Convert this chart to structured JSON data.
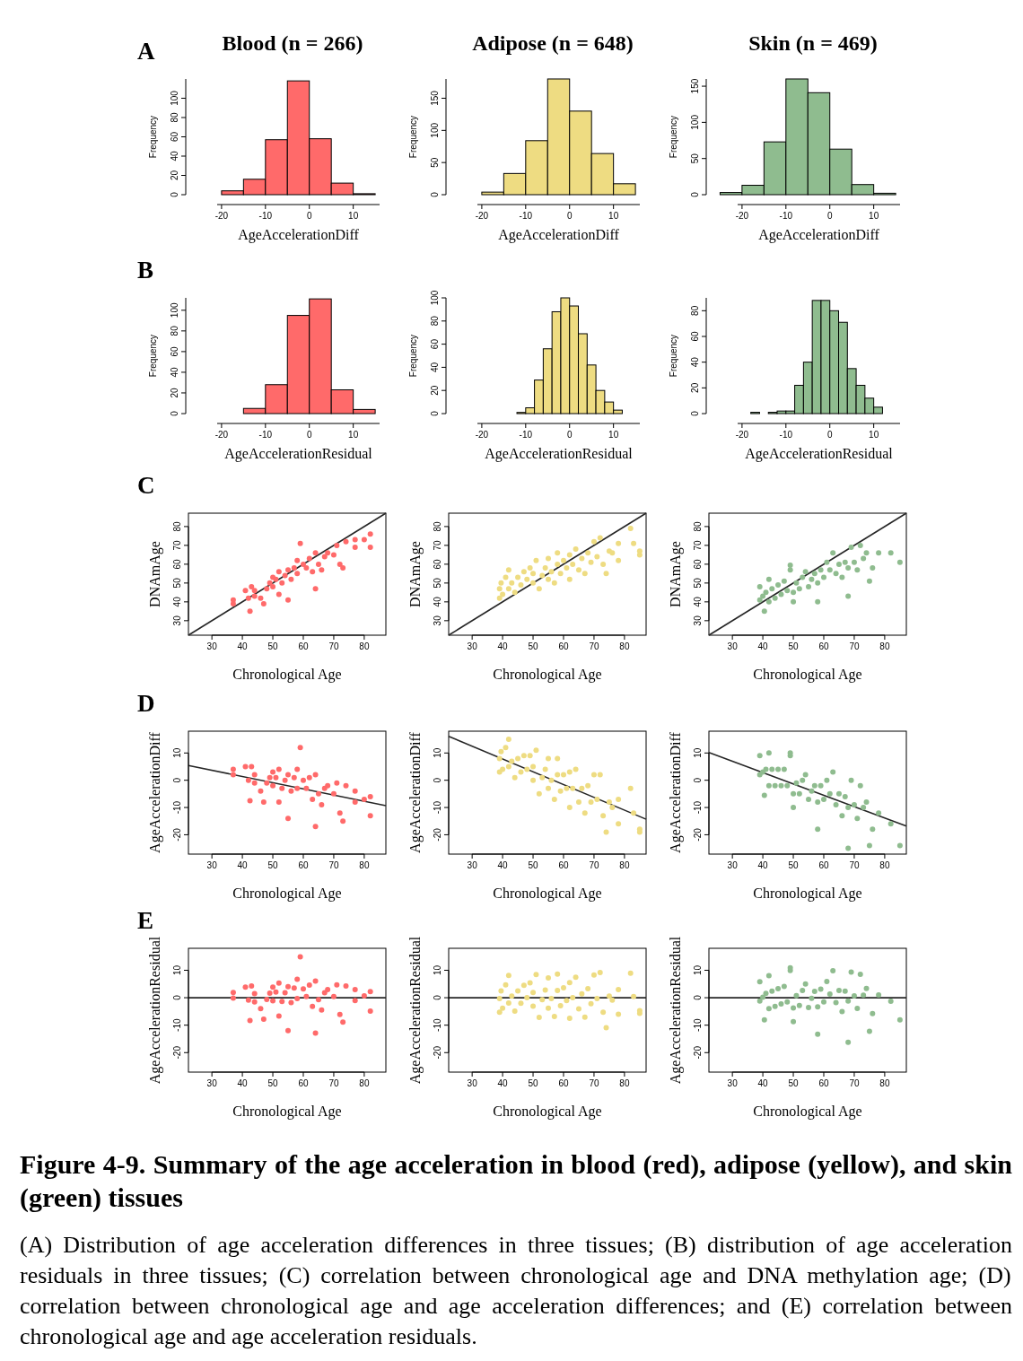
{
  "chart_data": [
    {
      "type": "histogram",
      "title": "Blood (n = 266)",
      "annotations": [
        "A"
      ],
      "xlabel": "AgeAccelerationDiff",
      "ylabel": "Frequency",
      "color": "#ff6a6a",
      "bins": [
        -20,
        -15,
        -10,
        -5,
        0,
        5,
        10,
        15
      ],
      "values": [
        4,
        16,
        57,
        118,
        58,
        12,
        1
      ],
      "xlim": [
        -21,
        16
      ],
      "xticks": [
        -20,
        -10,
        0,
        10
      ],
      "ylim": [
        0,
        120
      ],
      "yticks": [
        0,
        20,
        40,
        60,
        80,
        100
      ]
    },
    {
      "type": "histogram",
      "title": "Adipose (n = 648)",
      "xlabel": "AgeAccelerationDiff",
      "ylabel": "Frequency",
      "color": "#eedc82",
      "bins": [
        -20,
        -15,
        -10,
        -5,
        0,
        5,
        10,
        15
      ],
      "values": [
        4,
        33,
        84,
        180,
        130,
        64,
        17
      ],
      "xlim": [
        -21,
        16
      ],
      "xticks": [
        -20,
        -10,
        0,
        10
      ],
      "ylim": [
        0,
        180
      ],
      "yticks": [
        0,
        50,
        100,
        150
      ]
    },
    {
      "type": "histogram",
      "title": "Skin (n = 469)",
      "xlabel": "AgeAccelerationDiff",
      "ylabel": "Frequency",
      "color": "#8fbc8f",
      "bins": [
        -25,
        -20,
        -15,
        -10,
        -5,
        0,
        5,
        10,
        15
      ],
      "values": [
        3,
        13,
        73,
        160,
        141,
        63,
        14,
        2
      ],
      "xlim": [
        -21,
        16
      ],
      "xticks": [
        -20,
        -10,
        0,
        10
      ],
      "ylim": [
        0,
        160
      ],
      "yticks": [
        0,
        50,
        100,
        150
      ]
    },
    {
      "type": "histogram",
      "annotations": [
        "B"
      ],
      "xlabel": "AgeAccelerationResidual",
      "ylabel": "Frequency",
      "color": "#ff6a6a",
      "bins": [
        -15,
        -10,
        -5,
        0,
        5,
        10,
        15
      ],
      "values": [
        5,
        28,
        95,
        111,
        23,
        4
      ],
      "xlim": [
        -21,
        16
      ],
      "xticks": [
        -20,
        -10,
        0,
        10
      ],
      "ylim": [
        0,
        112
      ],
      "yticks": [
        0,
        20,
        40,
        60,
        80,
        100
      ]
    },
    {
      "type": "histogram",
      "xlabel": "AgeAccelerationResidual",
      "ylabel": "Frequency",
      "color": "#eedc82",
      "bins": [
        -12,
        -10,
        -8,
        -6,
        -4,
        -2,
        0,
        2,
        4,
        6,
        8,
        10,
        12
      ],
      "values": [
        1,
        5,
        29,
        56,
        88,
        100,
        93,
        69,
        42,
        20,
        10,
        3
      ],
      "xlim": [
        -21,
        16
      ],
      "xticks": [
        -20,
        -10,
        0,
        10
      ],
      "ylim": [
        0,
        100
      ],
      "yticks": [
        0,
        20,
        40,
        60,
        80,
        100
      ]
    },
    {
      "type": "histogram",
      "xlabel": "AgeAccelerationResidual",
      "ylabel": "Frequency",
      "color": "#8fbc8f",
      "bins": [
        -18,
        -16,
        -14,
        -12,
        -10,
        -8,
        -6,
        -4,
        -2,
        0,
        2,
        4,
        6,
        8,
        10,
        12
      ],
      "values": [
        1,
        0,
        1,
        2,
        2,
        22,
        40,
        88,
        88,
        80,
        71,
        35,
        22,
        12,
        5
      ],
      "xlim": [
        -21,
        16
      ],
      "xticks": [
        -20,
        -10,
        0,
        10
      ],
      "ylim": [
        0,
        90
      ],
      "yticks": [
        0,
        20,
        40,
        60,
        80
      ]
    },
    {
      "type": "scatter",
      "annotations": [
        "C"
      ],
      "xlabel": "Chronological Age",
      "ylabel": "DNAmAge",
      "marker": "circle",
      "xlim": [
        22.3,
        87.1
      ],
      "xticks": [
        30,
        40,
        50,
        60,
        70,
        80
      ],
      "ylim": [
        22.3,
        87.1
      ],
      "yticks": [
        30,
        40,
        50,
        60,
        70,
        80
      ],
      "series": [
        {
          "color": "#ff6a6a",
          "x": [
            37,
            37,
            41,
            42,
            42.5,
            43,
            44,
            44,
            46,
            47,
            48,
            49,
            50,
            50,
            51,
            52,
            52,
            53,
            54,
            55,
            55,
            56,
            57,
            58,
            58,
            59,
            60,
            61,
            62,
            63,
            64,
            64,
            65,
            66,
            67,
            68,
            70,
            71,
            72,
            73,
            74,
            77,
            77,
            80,
            82,
            82
          ],
          "values": [
            41,
            39,
            46,
            42,
            35,
            48,
            46,
            43,
            42,
            39,
            47,
            50,
            53,
            48,
            52,
            44,
            56,
            50,
            54,
            41,
            57,
            52,
            58,
            55,
            62,
            71,
            60,
            58,
            63,
            56,
            66,
            47,
            60,
            57,
            64,
            66,
            65,
            70,
            60,
            58,
            72,
            69,
            73,
            73,
            76,
            69
          ]
        },
        {
          "type": "line",
          "marker": "none",
          "color": "#262626",
          "x": [
            22.3,
            87.1
          ],
          "values": [
            22.3,
            87.1
          ]
        }
      ]
    },
    {
      "type": "scatter",
      "xlabel": "Chronological Age",
      "ylabel": "DNAmAge",
      "marker": "circle",
      "xlim": [
        22.3,
        87.1
      ],
      "xticks": [
        30,
        40,
        50,
        60,
        70,
        80
      ],
      "ylim": [
        22.3,
        87.1
      ],
      "yticks": [
        30,
        40,
        50,
        60,
        70,
        80
      ],
      "series": [
        {
          "color": "#eedc82",
          "x": [
            39,
            39,
            39.5,
            40,
            41,
            42,
            42,
            43,
            44,
            45,
            46,
            47,
            48,
            49,
            50,
            50,
            51,
            52,
            53,
            54,
            55,
            55,
            56,
            57,
            58,
            58,
            59,
            60,
            61,
            62,
            62,
            63,
            64,
            65,
            66,
            67,
            68,
            69,
            70,
            71,
            72,
            73,
            74,
            75,
            76,
            78,
            78,
            82,
            83,
            85,
            85
          ],
          "values": [
            42,
            47,
            50,
            44,
            53,
            47,
            57,
            50,
            45,
            53,
            49,
            56,
            52,
            58,
            50,
            55,
            62,
            47,
            54,
            58,
            52,
            63,
            56,
            50,
            60,
            66,
            55,
            62,
            58,
            65,
            52,
            60,
            68,
            57,
            63,
            55,
            66,
            61,
            72,
            64,
            74,
            60,
            55,
            67,
            66,
            71,
            62,
            79,
            71,
            67,
            65
          ]
        },
        {
          "type": "line",
          "marker": "none",
          "color": "#262626",
          "x": [
            22.3,
            87.1
          ],
          "values": [
            22.3,
            87.1
          ]
        }
      ]
    },
    {
      "type": "scatter",
      "xlabel": "Chronological Age",
      "ylabel": "DNAmAge",
      "marker": "circle",
      "xlim": [
        22.3,
        87.1
      ],
      "xticks": [
        30,
        40,
        50,
        60,
        70,
        80
      ],
      "ylim": [
        22.3,
        87.1
      ],
      "yticks": [
        30,
        40,
        50,
        60,
        70,
        80
      ],
      "series": [
        {
          "color": "#8fbc8f",
          "x": [
            39,
            39,
            40,
            40.5,
            41,
            42,
            42,
            43,
            44,
            45,
            46,
            47,
            48,
            49,
            49,
            50,
            50,
            51,
            52,
            53,
            54,
            55,
            56,
            57,
            58,
            58,
            59,
            60,
            61,
            62,
            63,
            64,
            65,
            66,
            67,
            68,
            68,
            69,
            70,
            71,
            72,
            73,
            74,
            75,
            76,
            78,
            82,
            85
          ],
          "values": [
            48,
            41,
            43,
            35,
            45,
            40,
            52,
            47,
            42,
            49,
            44,
            51,
            46,
            57,
            59.5,
            45,
            40,
            50,
            47,
            53,
            56,
            48,
            52,
            55,
            40,
            50,
            57,
            53,
            61,
            57,
            66,
            55,
            60,
            53,
            61,
            43,
            58,
            69,
            61,
            57,
            70,
            63,
            66,
            51,
            58,
            66,
            66,
            61
          ]
        },
        {
          "type": "line",
          "marker": "none",
          "color": "#262626",
          "x": [
            22.3,
            87.1
          ],
          "values": [
            22.3,
            87.1
          ]
        }
      ]
    },
    {
      "type": "scatter",
      "annotations": [
        "D"
      ],
      "xlabel": "Chronological Age",
      "ylabel": "AgeAccelerationDiff",
      "marker": "circle",
      "xlim": [
        22.3,
        87.1
      ],
      "xticks": [
        30,
        40,
        50,
        60,
        70,
        80
      ],
      "ylim": [
        -27.1,
        18
      ],
      "yticks": [
        -20,
        -10,
        0,
        10
      ],
      "series": [
        {
          "color": "#ff6a6a",
          "x": [
            37,
            37,
            41,
            42,
            42.5,
            43,
            44,
            44,
            46,
            47,
            48,
            49,
            50,
            50,
            51,
            52,
            52,
            53,
            54,
            55,
            55,
            56,
            57,
            58,
            58,
            59,
            60,
            61,
            62,
            63,
            64,
            64,
            65,
            66,
            67,
            68,
            70,
            71,
            72,
            73,
            74,
            77,
            77,
            80,
            82,
            82
          ],
          "values": [
            4,
            2,
            5,
            0,
            -7.5,
            5,
            2,
            -1,
            -4,
            -8,
            -1,
            1,
            3,
            -2,
            1,
            -8,
            4,
            -3,
            0,
            -14,
            2,
            -4,
            1,
            -3,
            4,
            12,
            0,
            -3,
            1,
            -7,
            2,
            -17,
            -5,
            -9,
            -3,
            -2,
            -5,
            -1,
            -12,
            -15,
            -2,
            -8,
            -4,
            -7,
            -6,
            -13
          ]
        },
        {
          "type": "line",
          "marker": "none",
          "color": "#262626",
          "x": [
            22.3,
            87.1
          ],
          "values": [
            5.4,
            -9.3
          ]
        }
      ]
    },
    {
      "type": "scatter",
      "xlabel": "Chronological Age",
      "ylabel": "AgeAccelerationDiff",
      "marker": "circle",
      "xlim": [
        22.3,
        87.1
      ],
      "xticks": [
        30,
        40,
        50,
        60,
        70,
        80
      ],
      "ylim": [
        -27.1,
        18
      ],
      "yticks": [
        -20,
        -10,
        0,
        10
      ],
      "series": [
        {
          "color": "#eedc82",
          "x": [
            39,
            39,
            39.5,
            40,
            41,
            42,
            42,
            43,
            44,
            45,
            46,
            47,
            48,
            49,
            50,
            50,
            51,
            52,
            53,
            54,
            55,
            55,
            56,
            57,
            58,
            58,
            59,
            60,
            61,
            62,
            62,
            63,
            64,
            65,
            66,
            67,
            68,
            69,
            70,
            71,
            72,
            73,
            74,
            75,
            76,
            78,
            78,
            82,
            83,
            85,
            85
          ],
          "values": [
            3,
            8,
            10.5,
            4,
            12,
            5,
            15,
            7,
            1,
            8,
            3,
            9,
            4,
            9,
            0,
            5,
            11,
            -5,
            1,
            4,
            -3,
            8,
            0,
            -7,
            2,
            8,
            -4,
            2,
            -3,
            3,
            -10,
            -3,
            4,
            -8,
            -3,
            -12,
            -2,
            -8,
            2,
            -7,
            2,
            -13,
            -19,
            -8,
            -10,
            -7,
            -16,
            -3,
            -12,
            -18,
            -19
          ]
        },
        {
          "type": "line",
          "marker": "none",
          "color": "#262626",
          "x": [
            22.3,
            87.1
          ],
          "values": [
            16.1,
            -14.3
          ]
        }
      ]
    },
    {
      "type": "scatter",
      "xlabel": "Chronological Age",
      "ylabel": "AgeAccelerationDiff",
      "marker": "circle",
      "xlim": [
        22.3,
        87.1
      ],
      "xticks": [
        30,
        40,
        50,
        60,
        70,
        80
      ],
      "ylim": [
        -27.1,
        18
      ],
      "yticks": [
        -20,
        -10,
        0,
        10
      ],
      "series": [
        {
          "color": "#8fbc8f",
          "x": [
            39,
            39,
            40,
            40.5,
            41,
            42,
            42,
            43,
            44,
            45,
            46,
            47,
            48,
            49,
            49,
            50,
            50,
            51,
            52,
            53,
            54,
            55,
            56,
            57,
            58,
            58,
            59,
            60,
            61,
            62,
            63,
            64,
            65,
            66,
            67,
            68,
            68,
            69,
            70,
            71,
            72,
            73,
            74,
            75,
            76,
            78,
            82,
            85
          ],
          "values": [
            9,
            2,
            3,
            -5.5,
            4,
            -2,
            10,
            4,
            -2,
            4,
            -2,
            4,
            -2,
            9,
            10,
            -5,
            -10,
            -1,
            -5,
            0,
            2,
            -7,
            -4,
            -2,
            -18,
            -8,
            -2,
            -7,
            0,
            -5,
            3,
            -9,
            -5,
            -13,
            -6,
            -25,
            -10,
            0,
            -9,
            -14,
            -2,
            -10,
            -8,
            -24,
            -18,
            -12,
            -16,
            -24
          ]
        },
        {
          "type": "line",
          "marker": "none",
          "color": "#262626",
          "x": [
            22.3,
            87.1
          ],
          "values": [
            10.2,
            -16.8
          ]
        }
      ]
    },
    {
      "type": "scatter",
      "annotations": [
        "E"
      ],
      "xlabel": "Chronological Age",
      "ylabel": "AgeAccelerationResidual",
      "marker": "circle",
      "xlim": [
        22.3,
        87.1
      ],
      "xticks": [
        30,
        40,
        50,
        60,
        70,
        80
      ],
      "ylim": [
        -27.1,
        18
      ],
      "yticks": [
        -20,
        -10,
        0,
        10
      ],
      "series": [
        {
          "color": "#ff6a6a",
          "x": [
            37,
            37,
            41,
            42,
            42.5,
            43,
            44,
            44,
            46,
            47,
            48,
            49,
            50,
            50,
            51,
            52,
            52,
            53,
            54,
            55,
            55,
            56,
            57,
            58,
            58,
            59,
            60,
            61,
            62,
            63,
            64,
            64,
            65,
            66,
            67,
            68,
            70,
            71,
            72,
            73,
            74,
            77,
            77,
            80,
            82,
            82
          ],
          "values": [
            1.9,
            -0.1,
            3.9,
            -0.9,
            -8.3,
            4.3,
            1.5,
            -1.5,
            -4,
            -7.8,
            -0.6,
            1.7,
            3.9,
            -1.1,
            2.1,
            -6.7,
            5.3,
            -1.4,
            1.8,
            -12,
            4,
            -1.8,
            3.5,
            -0.3,
            6.7,
            14.9,
            3.2,
            0.4,
            4.6,
            -3.2,
            6.1,
            -12.9,
            -0.7,
            -4.5,
            1.8,
            3,
            0.4,
            4.7,
            -6.1,
            -8.9,
            4.3,
            -1,
            3,
            0.7,
            2.2,
            -4.9
          ]
        },
        {
          "type": "line",
          "marker": "none",
          "color": "#262626",
          "x": [
            22.3,
            87.1
          ],
          "values": [
            0,
            0
          ]
        }
      ]
    },
    {
      "type": "scatter",
      "xlabel": "Chronological Age",
      "ylabel": "AgeAccelerationResidual",
      "marker": "circle",
      "xlim": [
        22.3,
        87.1
      ],
      "xticks": [
        30,
        40,
        50,
        60,
        70,
        80
      ],
      "ylim": [
        -27.1,
        18
      ],
      "yticks": [
        -20,
        -10,
        0,
        10
      ],
      "series": [
        {
          "color": "#eedc82",
          "x": [
            39,
            39,
            39.5,
            40,
            41,
            42,
            42,
            43,
            44,
            45,
            46,
            47,
            48,
            49,
            50,
            50,
            51,
            52,
            53,
            54,
            55,
            55,
            56,
            57,
            58,
            58,
            59,
            60,
            61,
            62,
            62,
            63,
            64,
            65,
            66,
            67,
            68,
            69,
            70,
            71,
            72,
            73,
            74,
            75,
            76,
            78,
            78,
            82,
            83,
            85,
            85
          ],
          "values": [
            -5.3,
            -0.3,
            2.5,
            -3.8,
            4.7,
            -1.9,
            8.1,
            0.6,
            -4.9,
            2.5,
            -2,
            4.5,
            0,
            5.4,
            -3.1,
            1.9,
            8.4,
            -7.2,
            -0.7,
            2.8,
            -3.8,
            7.2,
            -0.3,
            -6.8,
            2.6,
            8.6,
            -2.9,
            3.6,
            -1,
            5.5,
            -7.5,
            0,
            7.5,
            -4.1,
            1.4,
            -7.1,
            3.3,
            -2.2,
            8.3,
            -0.3,
            9.2,
            -5.3,
            -10.9,
            0.6,
            -0.9,
            3,
            -6,
            8.9,
            0.4,
            -4.7,
            -5.7
          ]
        },
        {
          "type": "line",
          "marker": "none",
          "color": "#262626",
          "x": [
            22.3,
            87.1
          ],
          "values": [
            0,
            0
          ]
        }
      ]
    },
    {
      "type": "scatter",
      "xlabel": "Chronological Age",
      "ylabel": "AgeAccelerationResidual",
      "marker": "circle",
      "xlim": [
        22.3,
        87.1
      ],
      "xticks": [
        30,
        40,
        50,
        60,
        70,
        80
      ],
      "ylim": [
        -27.1,
        18
      ],
      "yticks": [
        -20,
        -10,
        0,
        10
      ],
      "annotations": [
        "Figure 4-9. Summary of the age acceleration in blood (red), adipose (yellow), and skin (green) tissues",
        "(A) Distribution of age acceleration differences in three tissues; (B) distribution of age acceleration residuals in three tissues; (C) correlation between chronological age and DNA methylation age; (D) correlation between chronological age and age acceleration differences; and (E) correlation between chronological age and age acceleration residuals."
      ],
      "series": [
        {
          "color": "#8fbc8f",
          "x": [
            39,
            39,
            40,
            40.5,
            41,
            42,
            42,
            43,
            44,
            45,
            46,
            47,
            48,
            49,
            49,
            50,
            50,
            51,
            52,
            53,
            54,
            55,
            56,
            57,
            58,
            58,
            59,
            60,
            61,
            62,
            63,
            64,
            65,
            66,
            67,
            68,
            68,
            69,
            70,
            71,
            72,
            73,
            74,
            75,
            76,
            78,
            82,
            85
          ],
          "values": [
            5.8,
            -1.2,
            0.2,
            -8.1,
            1.6,
            -4,
            8,
            2.4,
            -3.2,
            3.3,
            -2.3,
            4.1,
            -1.5,
            9.9,
            10.9,
            -3.7,
            -8.7,
            0.8,
            -2.8,
            2.6,
            5,
            -3.6,
            -0.2,
            2.3,
            -13.3,
            -3.3,
            3.1,
            -1.5,
            5.9,
            1.3,
            9.8,
            -1.8,
            2.6,
            -5,
            2.4,
            -16.2,
            -1.2,
            9.3,
            0.7,
            -3.9,
            8.5,
            0.9,
            3.4,
            -12.2,
            -5.8,
            1,
            -1.3,
            -8.1
          ]
        },
        {
          "type": "line",
          "marker": "none",
          "color": "#262626",
          "x": [
            22.3,
            87.1
          ],
          "values": [
            0,
            0
          ]
        }
      ]
    }
  ]
}
